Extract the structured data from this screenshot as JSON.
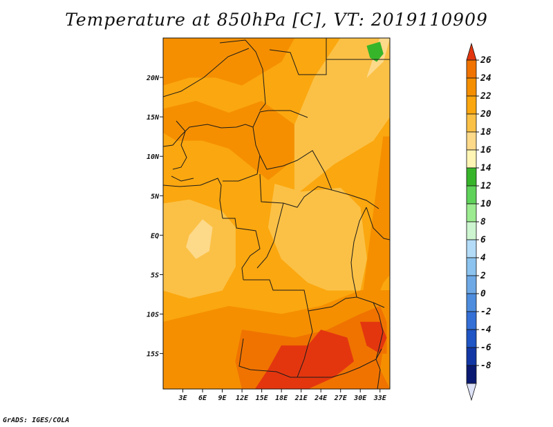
{
  "chart_data": {
    "type": "heatmap",
    "title": "Temperature at 850hPa [C], VT: 2019110909",
    "variable": "Temperature at 850hPa",
    "units": "C",
    "valid_time": "2019110909",
    "x_ticks": [
      "3E",
      "6E",
      "9E",
      "12E",
      "15E",
      "18E",
      "21E",
      "24E",
      "27E",
      "30E",
      "33E"
    ],
    "x_tick_values": [
      3,
      6,
      9,
      12,
      15,
      18,
      21,
      24,
      27,
      30,
      33
    ],
    "y_ticks": [
      "20N",
      "15N",
      "10N",
      "5N",
      "EQ",
      "5S",
      "10S",
      "15S"
    ],
    "y_tick_values": [
      20,
      15,
      10,
      5,
      0,
      -5,
      -10,
      -15
    ],
    "xlim": [
      0,
      34.5
    ],
    "ylim": [
      -19.5,
      25
    ],
    "colorbar": {
      "labels": [
        "26",
        "24",
        "22",
        "20",
        "18",
        "16",
        "14",
        "12",
        "10",
        "8",
        "6",
        "4",
        "2",
        "0",
        "-2",
        "-4",
        "-6",
        "-8"
      ],
      "levels": [
        26,
        24,
        22,
        20,
        18,
        16,
        14,
        12,
        10,
        8,
        6,
        4,
        2,
        0,
        -2,
        -4,
        -6,
        -8
      ],
      "colors": [
        "#f07300",
        "#f58f00",
        "#fba70f",
        "#fbc146",
        "#fdd98a",
        "#fef5b4",
        "#37b52a",
        "#5fd25a",
        "#9ceb90",
        "#cdf5cf",
        "#b4dcf8",
        "#8cc3ef",
        "#6ea9e6",
        "#4e8dde",
        "#3470d6",
        "#1f55c4",
        "#1237a5",
        "#0a1a72"
      ],
      "top_color": "#e3360f",
      "bottom_color": "#dde2f7"
    },
    "temperature_regions": [
      {
        "level": 20,
        "color": "#fba70f",
        "polygon": [
          [
            0,
            25
          ],
          [
            34.5,
            25
          ],
          [
            34.5,
            -19.5
          ],
          [
            0,
            -19.5
          ]
        ]
      },
      {
        "level": 22,
        "color": "#f58f00",
        "polygon": [
          [
            0,
            25
          ],
          [
            20,
            25
          ],
          [
            18,
            22
          ],
          [
            12,
            19
          ],
          [
            8,
            20
          ],
          [
            4,
            20
          ],
          [
            0,
            19
          ]
        ]
      },
      {
        "level": 22,
        "color": "#f58f00",
        "polygon": [
          [
            0,
            16
          ],
          [
            5,
            17
          ],
          [
            10,
            15.5
          ],
          [
            15,
            17
          ],
          [
            20,
            14
          ],
          [
            22,
            11
          ],
          [
            19,
            9
          ],
          [
            16,
            7
          ],
          [
            13,
            9
          ],
          [
            10,
            11
          ],
          [
            6,
            12
          ],
          [
            2,
            12
          ],
          [
            0,
            13
          ]
        ]
      },
      {
        "level": 22,
        "color": "#f58f00",
        "polygon": [
          [
            33.5,
            12.5
          ],
          [
            34.5,
            12.5
          ],
          [
            34.5,
            -5
          ],
          [
            33.5,
            -6
          ],
          [
            32,
            -9
          ],
          [
            30,
            -10
          ]
        ]
      },
      {
        "level": 22,
        "color": "#f58f00",
        "polygon": [
          [
            0,
            -11
          ],
          [
            10,
            -9
          ],
          [
            18,
            -10
          ],
          [
            24,
            -9
          ],
          [
            30,
            -7
          ],
          [
            34.5,
            -7
          ],
          [
            34.5,
            -19.5
          ],
          [
            0,
            -19.5
          ]
        ]
      },
      {
        "level": 18,
        "color": "#fbc146",
        "polygon": [
          [
            0,
            4
          ],
          [
            4,
            4.5
          ],
          [
            9,
            3
          ],
          [
            11,
            1
          ],
          [
            11,
            -4
          ],
          [
            9,
            -7
          ],
          [
            4,
            -8
          ],
          [
            0,
            -7
          ]
        ]
      },
      {
        "level": 18,
        "color": "#fbc146",
        "polygon": [
          [
            17,
            6.5
          ],
          [
            21,
            5.5
          ],
          [
            27,
            6
          ],
          [
            30,
            3.5
          ],
          [
            31,
            -3
          ],
          [
            30,
            -7
          ],
          [
            25,
            -7
          ],
          [
            22,
            -6
          ],
          [
            18,
            -3
          ],
          [
            16,
            1
          ]
        ]
      },
      {
        "level": 18,
        "color": "#fbc146",
        "polygon": [
          [
            20,
            5
          ],
          [
            26,
            9
          ],
          [
            32,
            12
          ],
          [
            34.5,
            15
          ],
          [
            34.5,
            25
          ],
          [
            27,
            25
          ],
          [
            23,
            20
          ],
          [
            20,
            14
          ]
        ]
      },
      {
        "level": 16,
        "color": "#fdd98a",
        "polygon": [
          [
            4,
            0
          ],
          [
            6,
            2
          ],
          [
            7.5,
            1
          ],
          [
            7,
            -2
          ],
          [
            5,
            -3
          ],
          [
            3.5,
            -1.5
          ]
        ]
      },
      {
        "level": 16,
        "color": "#fdd98a",
        "polygon": [
          [
            31,
            20
          ],
          [
            33.5,
            22
          ],
          [
            34.5,
            25
          ],
          [
            33,
            25
          ]
        ]
      },
      {
        "level": 24,
        "color": "#f07300",
        "polygon": [
          [
            12,
            -12
          ],
          [
            20,
            -13
          ],
          [
            25,
            -12
          ],
          [
            30,
            -10
          ],
          [
            33,
            -9
          ],
          [
            34,
            -11
          ],
          [
            33,
            -17
          ],
          [
            34.5,
            -19.5
          ],
          [
            12,
            -19.5
          ],
          [
            11,
            -16
          ]
        ]
      },
      {
        "level": 24,
        "color": "#f07300",
        "polygon": [
          [
            29,
            -11
          ],
          [
            34,
            -11
          ],
          [
            34,
            -15
          ],
          [
            30,
            -15
          ]
        ]
      },
      {
        "level": 26,
        "color": "#e3360f",
        "polygon": [
          [
            18,
            -14
          ],
          [
            22,
            -14
          ],
          [
            24,
            -12
          ],
          [
            28,
            -13
          ],
          [
            29,
            -16
          ],
          [
            26,
            -18
          ],
          [
            22,
            -19.5
          ],
          [
            14,
            -19.5
          ],
          [
            16,
            -17
          ]
        ]
      },
      {
        "level": 26,
        "color": "#e3360f",
        "polygon": [
          [
            30,
            -11
          ],
          [
            33,
            -11
          ],
          [
            34,
            -13
          ],
          [
            33,
            -15
          ],
          [
            31,
            -14
          ]
        ]
      },
      {
        "level": 12,
        "color": "#37b52a",
        "polygon": [
          [
            31,
            24
          ],
          [
            33,
            24.5
          ],
          [
            33.5,
            23
          ],
          [
            32.5,
            22
          ],
          [
            31.5,
            22.5
          ]
        ]
      }
    ]
  },
  "footer": "GrADS: IGES/COLA"
}
